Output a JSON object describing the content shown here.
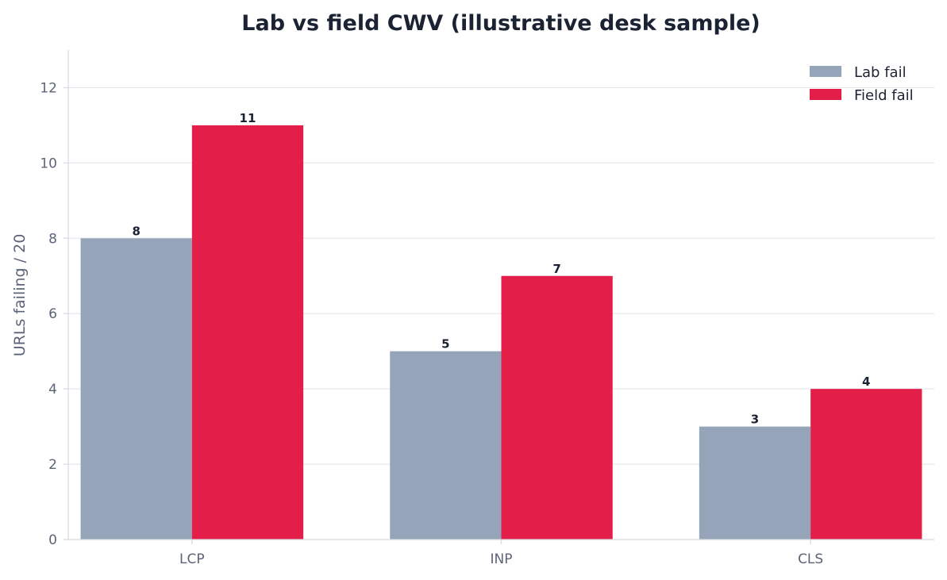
{
  "chart_data": {
    "type": "bar",
    "title": "Lab vs field CWV (illustrative desk sample)",
    "xlabel": "",
    "ylabel": "URLs failing / 20",
    "categories": [
      "LCP",
      "INP",
      "CLS"
    ],
    "series": [
      {
        "name": "Lab fail",
        "values": [
          8,
          5,
          3
        ],
        "color": "#95a4b9"
      },
      {
        "name": "Field fail",
        "values": [
          11,
          7,
          4
        ],
        "color": "#e31e48"
      }
    ],
    "ylim": [
      0,
      13
    ],
    "yticks": [
      0,
      2,
      4,
      6,
      8,
      10,
      12
    ],
    "grid": true,
    "legend_position": "top-right",
    "colors": {
      "grid": "#e6e9ee",
      "axis": "#d7dbe2",
      "text": "#1b2333",
      "muted": "#5c6478"
    }
  }
}
